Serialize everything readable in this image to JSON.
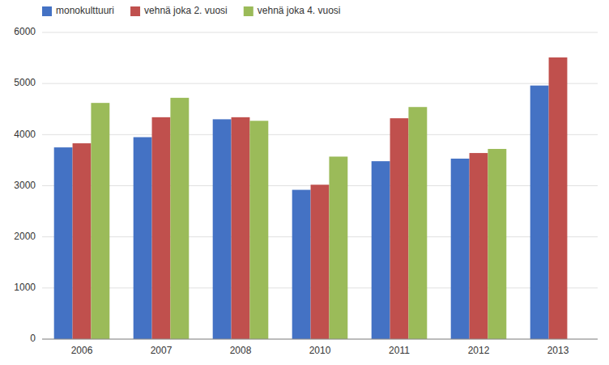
{
  "chart_data": {
    "type": "bar",
    "categories": [
      "2006",
      "2007",
      "2008",
      "2010",
      "2011",
      "2012",
      "2013"
    ],
    "series": [
      {
        "name": "monokulttuuri",
        "color": "#4472C4",
        "values": [
          3750,
          3950,
          4300,
          2920,
          3480,
          3530,
          4960
        ]
      },
      {
        "name": "vehnä joka 2. vuosi",
        "color": "#C0504D",
        "values": [
          3830,
          4340,
          4340,
          3020,
          4320,
          3640,
          5510
        ]
      },
      {
        "name": "vehnä joka 4. vuosi",
        "color": "#9BBB59",
        "values": [
          4620,
          4720,
          4270,
          3570,
          4540,
          3720,
          null
        ]
      }
    ],
    "ylim": [
      0,
      6000
    ],
    "yticks": [
      0,
      1000,
      2000,
      3000,
      4000,
      5000,
      6000
    ],
    "grid": true,
    "legend": "upper left"
  }
}
